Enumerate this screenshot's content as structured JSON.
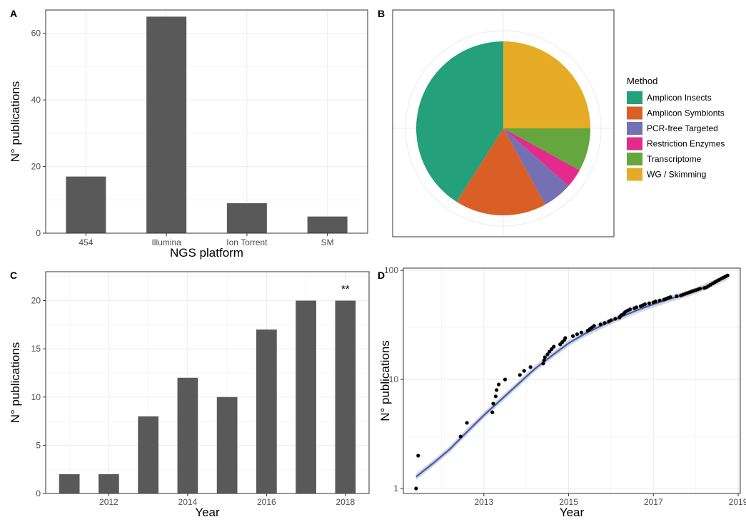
{
  "colors": {
    "bar": "#595959",
    "grid_major": "#ebebeb",
    "grid_minor": "#f5f5f5",
    "frame": "#333333",
    "smooth_line": "#3f5ab0",
    "smooth_band": "#c9ccd6",
    "point": "#000000"
  },
  "chart_data": [
    {
      "panel": "A",
      "type": "bar",
      "categories": [
        "454",
        "Illumina",
        "Ion Torrent",
        "SM"
      ],
      "values": [
        17,
        65,
        9,
        5
      ],
      "xlabel": "NGS platform",
      "ylabel": "N° publications",
      "ylim": [
        0,
        67
      ],
      "yticks": [
        0,
        20,
        40,
        60
      ],
      "grid": true
    },
    {
      "panel": "B",
      "type": "pie",
      "legend_title": "Method",
      "legend_position": "right",
      "slices": [
        {
          "label": "WG / Skimming",
          "value": 25,
          "color": "#e6ab24"
        },
        {
          "label": "Transcriptome",
          "value": 8,
          "color": "#66a63f"
        },
        {
          "label": "Restriction Enzymes",
          "value": 3.5,
          "color": "#e42a8a"
        },
        {
          "label": "PCR-free Targeted",
          "value": 5.5,
          "color": "#7470b3"
        },
        {
          "label": "Amplicon Symbionts",
          "value": 17,
          "color": "#d95f26"
        },
        {
          "label": "Amplicon Insects",
          "value": 41,
          "color": "#24a07a"
        }
      ],
      "legend_order": [
        "Amplicon Insects",
        "Amplicon Symbionts",
        "PCR-free Targeted",
        "Restriction Enzymes",
        "Transcriptome",
        "WG / Skimming"
      ]
    },
    {
      "panel": "C",
      "type": "bar",
      "x": [
        2011,
        2012,
        2013,
        2014,
        2015,
        2016,
        2017,
        2018
      ],
      "values": [
        2,
        2,
        8,
        12,
        10,
        17,
        20,
        20
      ],
      "xticks": [
        2012,
        2014,
        2016,
        2018
      ],
      "xlabel": "Year",
      "ylabel": "N° publications",
      "ylim": [
        0,
        23
      ],
      "yticks": [
        0,
        5,
        10,
        15,
        20
      ],
      "annotation": {
        "text": "**",
        "x": 2018
      },
      "grid": true
    },
    {
      "panel": "D",
      "type": "scatter",
      "yscale": "log",
      "xlabel": "Year",
      "ylabel": "N° publications",
      "xlim": [
        2011.1,
        2019.05
      ],
      "ylim": [
        0.9,
        105
      ],
      "xticks": [
        2013,
        2015,
        2017,
        2019
      ],
      "yticks": [
        1,
        10,
        100
      ],
      "points": [
        [
          2011.4,
          1
        ],
        [
          2011.45,
          2
        ],
        [
          2012.45,
          3
        ],
        [
          2012.6,
          4
        ],
        [
          2013.2,
          5
        ],
        [
          2013.22,
          6
        ],
        [
          2013.28,
          7
        ],
        [
          2013.3,
          8
        ],
        [
          2013.35,
          9
        ],
        [
          2013.5,
          10
        ],
        [
          2013.85,
          11
        ],
        [
          2013.95,
          12
        ],
        [
          2014.1,
          13
        ],
        [
          2014.4,
          14
        ],
        [
          2014.42,
          15
        ],
        [
          2014.44,
          16
        ],
        [
          2014.5,
          17
        ],
        [
          2014.55,
          18
        ],
        [
          2014.6,
          19
        ],
        [
          2014.65,
          20
        ],
        [
          2014.8,
          21
        ],
        [
          2014.85,
          22
        ],
        [
          2014.9,
          23
        ],
        [
          2014.92,
          24
        ],
        [
          2015.1,
          25
        ],
        [
          2015.2,
          26
        ],
        [
          2015.3,
          27
        ],
        [
          2015.45,
          28
        ],
        [
          2015.5,
          29
        ],
        [
          2015.55,
          30
        ],
        [
          2015.6,
          31
        ],
        [
          2015.75,
          32
        ],
        [
          2015.85,
          33
        ],
        [
          2015.95,
          34
        ],
        [
          2016.0,
          35
        ],
        [
          2016.1,
          36
        ],
        [
          2016.2,
          37
        ],
        [
          2016.22,
          38
        ],
        [
          2016.25,
          39
        ],
        [
          2016.3,
          40
        ],
        [
          2016.32,
          41
        ],
        [
          2016.35,
          42
        ],
        [
          2016.4,
          43
        ],
        [
          2016.45,
          44
        ],
        [
          2016.55,
          45
        ],
        [
          2016.6,
          46
        ],
        [
          2016.7,
          47
        ],
        [
          2016.75,
          48
        ],
        [
          2016.8,
          49
        ],
        [
          2016.9,
          50
        ],
        [
          2017.0,
          51
        ],
        [
          2017.05,
          52
        ],
        [
          2017.15,
          53
        ],
        [
          2017.25,
          54
        ],
        [
          2017.3,
          55
        ],
        [
          2017.35,
          56
        ],
        [
          2017.4,
          57
        ],
        [
          2017.55,
          58
        ],
        [
          2017.65,
          59
        ],
        [
          2017.7,
          60
        ],
        [
          2017.75,
          61
        ],
        [
          2017.8,
          62
        ],
        [
          2017.85,
          63
        ],
        [
          2017.9,
          64
        ],
        [
          2017.95,
          65
        ],
        [
          2018.0,
          66
        ],
        [
          2018.05,
          67
        ],
        [
          2018.1,
          68
        ],
        [
          2018.2,
          69
        ],
        [
          2018.25,
          70
        ],
        [
          2018.3,
          72
        ],
        [
          2018.35,
          74
        ],
        [
          2018.4,
          76
        ],
        [
          2018.45,
          78
        ],
        [
          2018.5,
          80
        ],
        [
          2018.55,
          82
        ],
        [
          2018.6,
          84
        ],
        [
          2018.65,
          86
        ],
        [
          2018.7,
          88
        ],
        [
          2018.75,
          90
        ]
      ],
      "smooth": [
        [
          2011.4,
          1.28
        ],
        [
          2011.8,
          1.7
        ],
        [
          2012.2,
          2.3
        ],
        [
          2012.6,
          3.3
        ],
        [
          2013.0,
          4.7
        ],
        [
          2013.4,
          6.5
        ],
        [
          2013.8,
          9.0
        ],
        [
          2014.2,
          12.5
        ],
        [
          2014.6,
          16.5
        ],
        [
          2015.0,
          21.5
        ],
        [
          2015.4,
          26.5
        ],
        [
          2015.8,
          31.5
        ],
        [
          2016.2,
          37.0
        ],
        [
          2016.6,
          43.0
        ],
        [
          2017.0,
          49.0
        ],
        [
          2017.4,
          55.0
        ],
        [
          2017.8,
          61.0
        ],
        [
          2018.2,
          70.0
        ],
        [
          2018.5,
          79.0
        ],
        [
          2018.75,
          88.0
        ]
      ]
    }
  ],
  "labels": {
    "panel_a": "A",
    "panel_b": "B",
    "panel_c": "C",
    "panel_d": "D"
  }
}
